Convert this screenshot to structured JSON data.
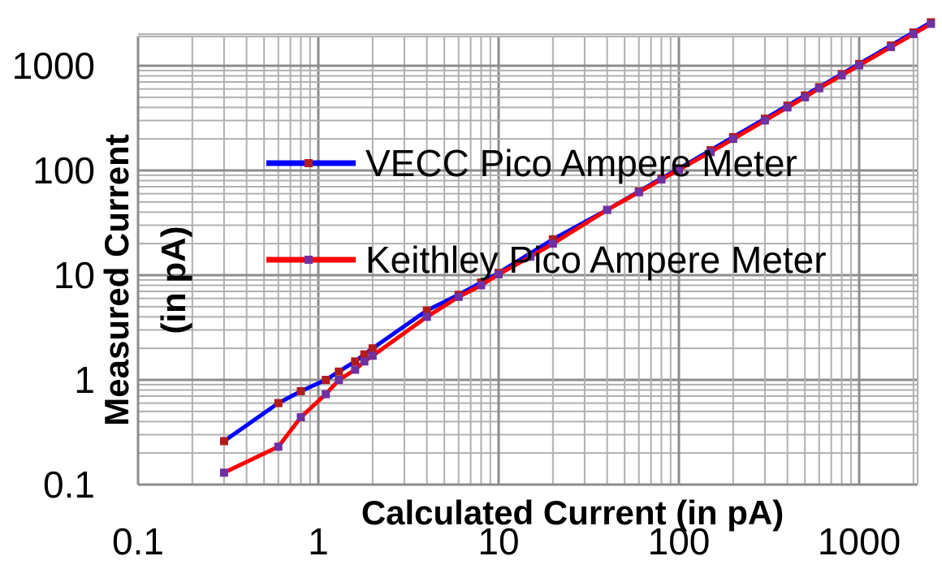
{
  "chart_data": {
    "type": "line",
    "title": "",
    "xlabel": "Calculated Current (in pA)",
    "ylabel": "Measured Current (in pA)",
    "ylabel_lines": [
      "Measured Current",
      "(in pA)"
    ],
    "x_scale": "log",
    "y_scale": "log",
    "xlim": [
      0.1,
      3000
    ],
    "ylim": [
      0.1,
      2000
    ],
    "x_ticks": [
      0.1,
      1,
      10,
      100,
      1000
    ],
    "y_ticks": [
      0.1,
      1,
      10,
      100,
      1000
    ],
    "x_tick_labels": [
      "0.1",
      "1",
      "10",
      "100",
      "1000"
    ],
    "y_tick_labels": [
      "0.1",
      "1",
      "10",
      "100",
      "1000"
    ],
    "grid": true,
    "legend_position": "center-left",
    "series": [
      {
        "name": "VECC Pico Ampere Meter",
        "line_color": "#0000ff",
        "marker_color": "#b01c1c",
        "x": [
          0.3,
          0.6,
          0.8,
          1.1,
          1.3,
          1.6,
          1.8,
          2.0,
          4.0,
          6.0,
          8.0,
          10,
          20,
          40,
          60,
          80,
          100,
          150,
          200,
          300,
          400,
          500,
          600,
          800,
          1000,
          1500,
          2000,
          2500
        ],
        "y": [
          0.26,
          0.6,
          0.78,
          1.0,
          1.2,
          1.5,
          1.75,
          2.0,
          4.6,
          6.5,
          8.5,
          10.5,
          22,
          42,
          63,
          84,
          104,
          156,
          208,
          312,
          416,
          520,
          624,
          832,
          1040,
          1560,
          2080,
          2600
        ]
      },
      {
        "name": "Keithley Pico Ampere Meter",
        "line_color": "#ff0000",
        "marker_color": "#7030a0",
        "x": [
          0.3,
          0.6,
          0.8,
          1.1,
          1.3,
          1.6,
          1.8,
          2.0,
          4.0,
          6.0,
          8.0,
          10,
          15,
          20,
          40,
          60,
          80,
          100,
          150,
          200,
          300,
          400,
          500,
          600,
          800,
          1000,
          1500,
          2000,
          2500
        ],
        "y": [
          0.13,
          0.23,
          0.44,
          0.73,
          1.0,
          1.25,
          1.5,
          1.7,
          4.0,
          6.2,
          8.0,
          10.2,
          15,
          20,
          42,
          62,
          82,
          102,
          150,
          200,
          300,
          400,
          500,
          610,
          810,
          1010,
          1510,
          2010,
          2510
        ]
      }
    ]
  }
}
